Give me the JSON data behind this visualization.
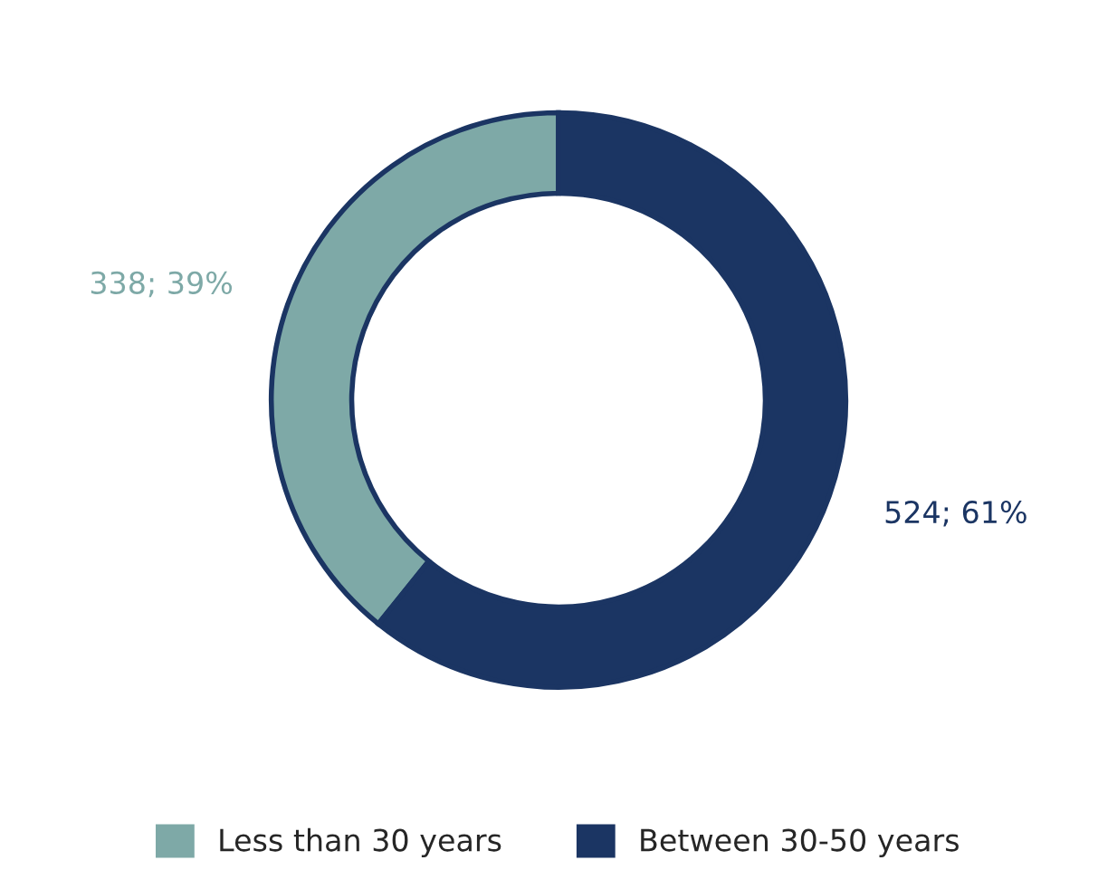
{
  "chart_data": {
    "type": "donut",
    "categories": [
      "Less than 30 years",
      "Between 30-50 years"
    ],
    "values": [
      338,
      524
    ],
    "colors": [
      "#7ea9a7",
      "#1b3563"
    ],
    "value_labels": [
      "338; 39%",
      "524; 61%"
    ],
    "legend": "bottom"
  }
}
